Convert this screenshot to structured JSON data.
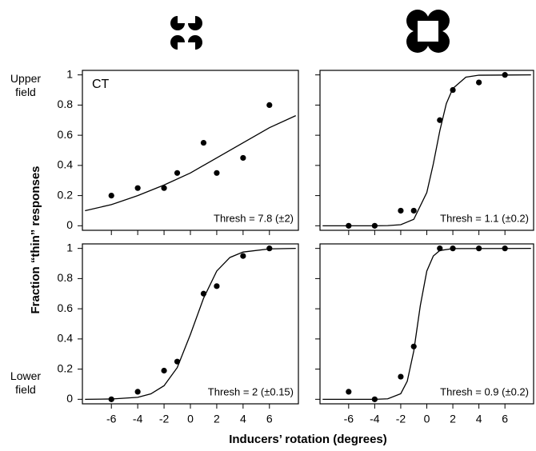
{
  "ylabel": "Fraction “thin” responses",
  "xlabel": "Inducers’ rotation (degrees)",
  "row_labels": [
    "Upper field",
    "Lower field"
  ],
  "chart_data": [
    {
      "type": "scatter",
      "annotation": "CT",
      "thresh": "Thresh = 7.8 (±2)",
      "x": [
        -6,
        -4,
        -2,
        -1,
        1,
        2,
        4,
        6
      ],
      "values": [
        0.2,
        0.25,
        0.25,
        0.35,
        0.55,
        0.35,
        0.45,
        0.8
      ],
      "fit": {
        "x": [
          -8,
          -6,
          -4,
          -2,
          0,
          2,
          4,
          6,
          8
        ],
        "values": [
          0.1,
          0.14,
          0.2,
          0.27,
          0.35,
          0.45,
          0.55,
          0.65,
          0.73
        ]
      },
      "xlim": [
        -8.2,
        8.2
      ],
      "ylim": [
        -0.03,
        1.03
      ],
      "xticks": [
        -6,
        -4,
        -2,
        0,
        2,
        4,
        6
      ],
      "yticks": [
        0,
        0.2,
        0.4,
        0.6,
        0.8,
        1
      ],
      "color": "#000000"
    },
    {
      "type": "scatter",
      "thresh": "Thresh = 1.1 (±0.2)",
      "x": [
        -6,
        -4,
        -2,
        -1,
        1,
        2,
        4,
        6
      ],
      "values": [
        0,
        0,
        0.1,
        0.1,
        0.7,
        0.9,
        0.95,
        1
      ],
      "fit": {
        "x": [
          -8,
          -4,
          -3,
          -2,
          -1,
          0,
          0.5,
          1,
          1.5,
          2,
          3,
          4,
          8
        ],
        "values": [
          0,
          0,
          0.001,
          0.007,
          0.043,
          0.22,
          0.41,
          0.63,
          0.81,
          0.91,
          0.985,
          0.998,
          1
        ]
      },
      "xlim": [
        -8.2,
        8.2
      ],
      "ylim": [
        -0.03,
        1.03
      ],
      "xticks": [
        -6,
        -4,
        -2,
        0,
        2,
        4,
        6
      ],
      "yticks": [
        0,
        0.2,
        0.4,
        0.6,
        0.8,
        1
      ],
      "color": "#000000"
    },
    {
      "type": "scatter",
      "thresh": "Thresh = 2 (±0.15)",
      "x": [
        -6,
        -4,
        -2,
        -1,
        1,
        2,
        4,
        6
      ],
      "values": [
        0,
        0.05,
        0.19,
        0.25,
        0.7,
        0.75,
        0.95,
        1
      ],
      "fit": {
        "x": [
          -8,
          -6,
          -4,
          -3,
          -2,
          -1,
          0,
          1,
          2,
          3,
          4,
          6,
          8
        ],
        "values": [
          0,
          0.002,
          0.013,
          0.036,
          0.09,
          0.21,
          0.43,
          0.67,
          0.85,
          0.94,
          0.976,
          0.997,
          1
        ]
      },
      "xlim": [
        -8.2,
        8.2
      ],
      "ylim": [
        -0.03,
        1.03
      ],
      "xticks": [
        -6,
        -4,
        -2,
        0,
        2,
        4,
        6
      ],
      "yticks": [
        0,
        0.2,
        0.4,
        0.6,
        0.8,
        1
      ],
      "color": "#000000"
    },
    {
      "type": "scatter",
      "thresh": "Thresh = 0.9 (±0.2)",
      "x": [
        -6,
        -4,
        -2,
        -1,
        1,
        2,
        4,
        6
      ],
      "values": [
        0.05,
        0,
        0.15,
        0.35,
        1,
        1,
        1,
        1
      ],
      "fit": {
        "x": [
          -8,
          -4,
          -3,
          -2,
          -1.5,
          -1,
          -0.5,
          0,
          0.5,
          1,
          2,
          8
        ],
        "values": [
          0,
          0,
          0.003,
          0.037,
          0.12,
          0.32,
          0.62,
          0.85,
          0.95,
          0.986,
          0.999,
          1
        ]
      },
      "xlim": [
        -8.2,
        8.2
      ],
      "ylim": [
        -0.03,
        1.03
      ],
      "xticks": [
        -6,
        -4,
        -2,
        0,
        2,
        4,
        6
      ],
      "yticks": [
        0,
        0.2,
        0.4,
        0.6,
        0.8,
        1
      ],
      "color": "#000000"
    }
  ]
}
